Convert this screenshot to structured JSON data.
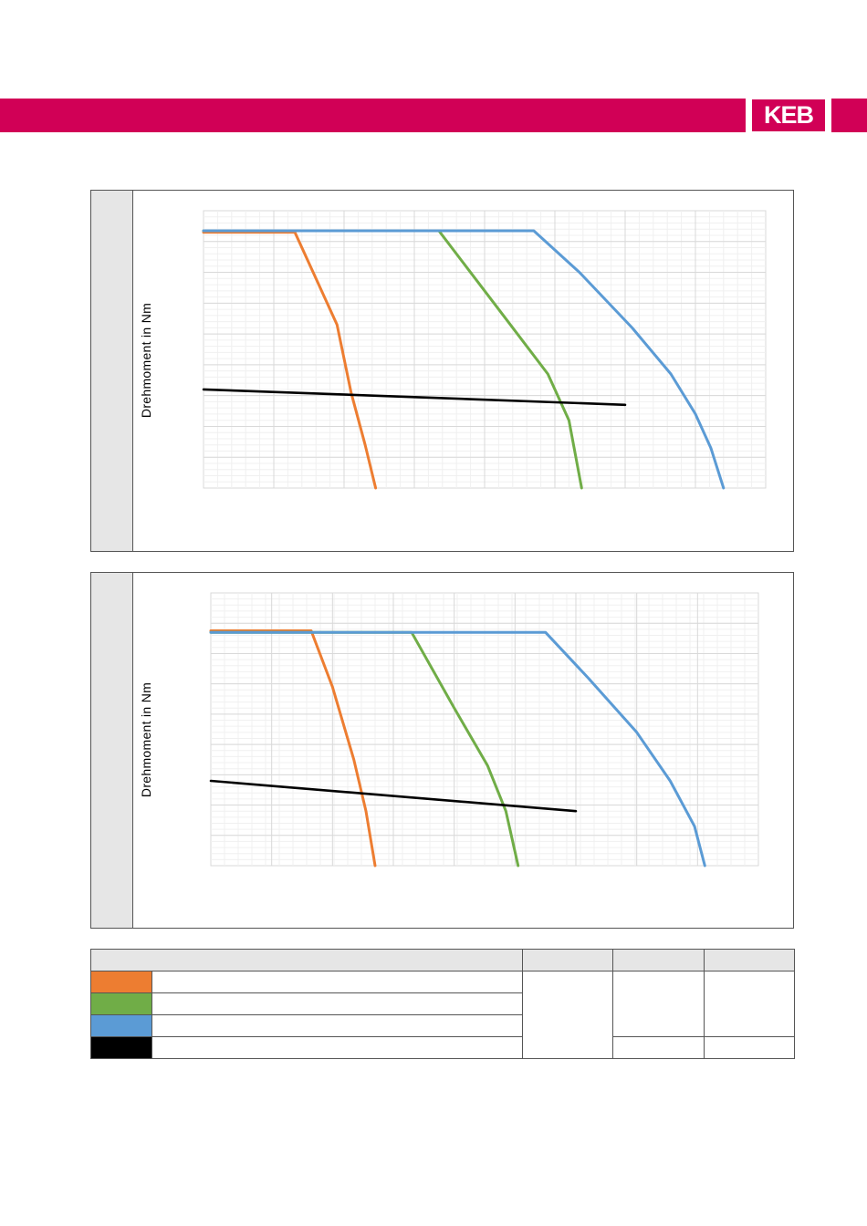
{
  "brand": {
    "logo_text": "KEB",
    "color": "#d10056"
  },
  "charts": [
    {
      "ylabel": "Drehmoment in Nm"
    },
    {
      "ylabel": "Drehmoment in Nm"
    }
  ],
  "chart_data": [
    {
      "type": "line",
      "ylabel": "Drehmoment in Nm",
      "grid": true,
      "xlim": [
        0,
        8
      ],
      "ylim": [
        0,
        9
      ],
      "series": [
        {
          "color": "#ed7d31",
          "x": [
            0,
            1.3,
            1.6,
            1.9,
            2.1,
            2.3,
            2.45
          ],
          "y": [
            8.3,
            8.3,
            6.8,
            5.3,
            3.1,
            1.4,
            0
          ]
        },
        {
          "color": "#70ad47",
          "x": [
            0,
            3.35,
            4.3,
            4.9,
            5.2,
            5.38
          ],
          "y": [
            8.35,
            8.35,
            5.5,
            3.7,
            2.2,
            0
          ]
        },
        {
          "color": "#5b9bd5",
          "x": [
            0,
            4.7,
            5.35,
            6.1,
            6.65,
            7.0,
            7.22,
            7.4
          ],
          "y": [
            8.35,
            8.35,
            7.0,
            5.2,
            3.7,
            2.4,
            1.3,
            0
          ]
        },
        {
          "color": "#000000",
          "x": [
            0,
            6.0
          ],
          "y": [
            3.2,
            2.7
          ]
        }
      ]
    },
    {
      "type": "line",
      "ylabel": "Drehmoment in Nm",
      "grid": true,
      "xlim": [
        0,
        9
      ],
      "ylim": [
        0,
        9
      ],
      "series": [
        {
          "color": "#ed7d31",
          "x": [
            0,
            1.65,
            2.0,
            2.35,
            2.55,
            2.7
          ],
          "y": [
            7.75,
            7.75,
            5.9,
            3.5,
            1.8,
            0
          ]
        },
        {
          "color": "#70ad47",
          "x": [
            0,
            3.3,
            4.0,
            4.55,
            4.85,
            5.05
          ],
          "y": [
            7.7,
            7.7,
            5.2,
            3.3,
            1.8,
            0
          ]
        },
        {
          "color": "#5b9bd5",
          "x": [
            0,
            5.5,
            6.2,
            7.0,
            7.55,
            7.95,
            8.12
          ],
          "y": [
            7.7,
            7.7,
            6.2,
            4.4,
            2.8,
            1.3,
            0
          ]
        },
        {
          "color": "#000000",
          "x": [
            0,
            6.0
          ],
          "y": [
            2.8,
            1.8
          ]
        }
      ]
    }
  ],
  "legend": {
    "rows": [
      {
        "color": "#ed7d31",
        "name": ""
      },
      {
        "color": "#70ad47",
        "name": ""
      },
      {
        "color": "#5b9bd5",
        "name": ""
      },
      {
        "color": "#000000",
        "name": ""
      }
    ]
  }
}
